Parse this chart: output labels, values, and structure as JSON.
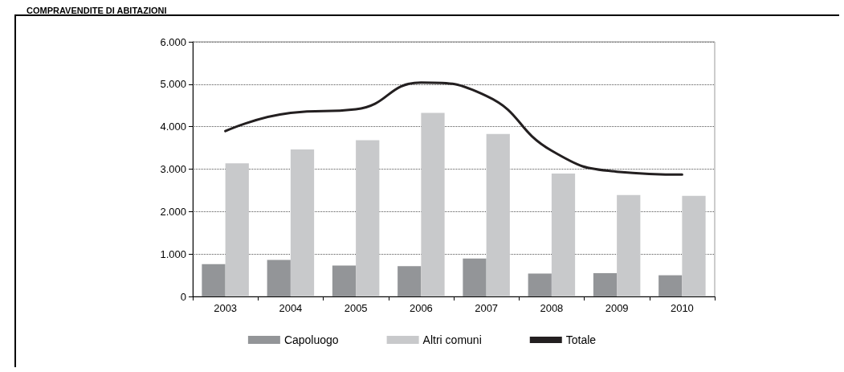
{
  "chart_data": {
    "type": "bar",
    "title": "COMPRAVENDITE DI ABITAZIONI",
    "categories": [
      "2003",
      "2004",
      "2005",
      "2006",
      "2007",
      "2008",
      "2009",
      "2010"
    ],
    "series": [
      {
        "name": "Capoluogo",
        "color": "#939598",
        "values": [
          760,
          860,
          730,
          715,
          895,
          540,
          550,
          500
        ]
      },
      {
        "name": "Altri comuni",
        "color": "#c8c9cb",
        "values": [
          3135,
          3465,
          3680,
          4325,
          3830,
          2895,
          2390,
          2370
        ]
      },
      {
        "name": "Totale",
        "type": "line",
        "color": "#231f20",
        "values": [
          3895,
          4325,
          4410,
          5040,
          4725,
          3435,
          2940,
          2870
        ]
      }
    ],
    "ylim": [
      0,
      6000
    ],
    "yticks": [
      {
        "value": 0,
        "label": "0"
      },
      {
        "value": 1000,
        "label": "1.000"
      },
      {
        "value": 2000,
        "label": "2.000"
      },
      {
        "value": 3000,
        "label": "3.000"
      },
      {
        "value": 4000,
        "label": "4.000"
      },
      {
        "value": 5000,
        "label": "5.000"
      },
      {
        "value": 6000,
        "label": "6.000"
      }
    ],
    "grid": "y",
    "legend": "bottom",
    "marker": "none",
    "line_style": "solid"
  }
}
